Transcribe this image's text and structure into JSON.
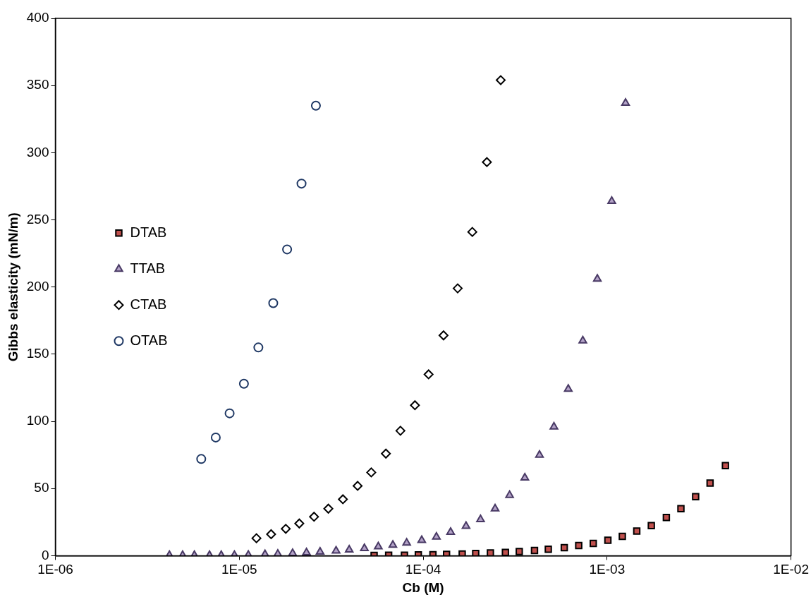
{
  "chart_data": {
    "type": "scatter",
    "xlabel": "Cb (M)",
    "ylabel": "Gibbs elasticity (mN/m)",
    "log": "x",
    "xlim": [
      1e-06,
      0.01
    ],
    "xticks": [
      {
        "value": 1e-06,
        "label": "1E-06"
      },
      {
        "value": 1e-05,
        "label": "1E-05"
      },
      {
        "value": 0.0001,
        "label": "1E-04"
      },
      {
        "value": 0.001,
        "label": "1E-03"
      },
      {
        "value": 0.01,
        "label": "1E-02"
      }
    ],
    "ylim": [
      0,
      400
    ],
    "yticks": [
      0,
      50,
      100,
      150,
      200,
      250,
      300,
      350,
      400
    ],
    "grid": false,
    "legend": "left",
    "series": [
      {
        "name": "DTAB",
        "marker": "square",
        "color": "#c0504d",
        "x": [
          5.41e-05,
          6.49e-05,
          7.91e-05,
          9.41e-05,
          0.000113,
          0.000134,
          0.000163,
          0.000193,
          0.000232,
          0.00028,
          0.000333,
          0.000403,
          0.000479,
          0.000585,
          0.000701,
          0.000841,
          0.00101,
          0.00121,
          0.00145,
          0.00174,
          0.0021,
          0.00252,
          0.00303,
          0.00363,
          0.0044
        ],
        "values": [
          0.2,
          0.3,
          0.4,
          0.6,
          0.8,
          1.0,
          1.3,
          1.6,
          2.0,
          2.5,
          3.1,
          3.9,
          4.8,
          6.0,
          7.6,
          9.2,
          11.5,
          14.4,
          18.3,
          22.4,
          28.5,
          35,
          44,
          54,
          67
        ]
      },
      {
        "name": "TTAB",
        "marker": "triangle",
        "color": "#b3a2c7",
        "x": [
          4.17e-06,
          4.92e-06,
          5.7e-06,
          6.89e-06,
          7.98e-06,
          9.41e-06,
          1.12e-05,
          1.38e-05,
          1.62e-05,
          1.95e-05,
          2.32e-05,
          2.75e-05,
          3.36e-05,
          3.96e-05,
          4.79e-05,
          5.7e-05,
          6.84e-05,
          8.13e-05,
          9.82e-05,
          0.000118,
          0.000141,
          0.000171,
          0.000205,
          0.000246,
          0.000295,
          0.000357,
          0.000429,
          0.000514,
          0.000615,
          0.000738,
          0.000885,
          0.00106,
          0.00126
        ],
        "values": [
          0.3,
          0.3,
          0.3,
          0.3,
          0.3,
          0.4,
          0.5,
          1,
          1.3,
          1.8,
          2.3,
          2.9,
          3.6,
          4.4,
          5.5,
          6.8,
          8,
          9.5,
          11.5,
          14,
          17.5,
          22,
          27,
          35,
          45,
          58,
          75,
          96,
          124,
          160,
          206,
          264,
          337
        ]
      },
      {
        "name": "CTAB",
        "marker": "diamond",
        "color": "#000000",
        "x": [
          1.24e-05,
          1.49e-05,
          1.79e-05,
          2.12e-05,
          2.55e-05,
          3.05e-05,
          3.66e-05,
          4.4e-05,
          5.22e-05,
          6.27e-05,
          7.52e-05,
          9.02e-05,
          0.000107,
          0.000129,
          0.000154,
          0.000185,
          0.000222,
          0.000264
        ],
        "values": [
          13,
          16,
          20,
          24,
          29,
          35,
          42,
          52,
          62,
          76,
          93,
          112,
          135,
          164,
          199,
          241,
          293,
          354
        ]
      },
      {
        "name": "OTAB",
        "marker": "circle",
        "color": "#1f3864",
        "x": [
          6.21e-06,
          7.45e-06,
          8.86e-06,
          1.06e-05,
          1.27e-05,
          1.53e-05,
          1.82e-05,
          2.18e-05,
          2.61e-05
        ],
        "values": [
          72,
          88,
          106,
          128,
          155,
          188,
          228,
          277,
          335
        ]
      }
    ]
  }
}
